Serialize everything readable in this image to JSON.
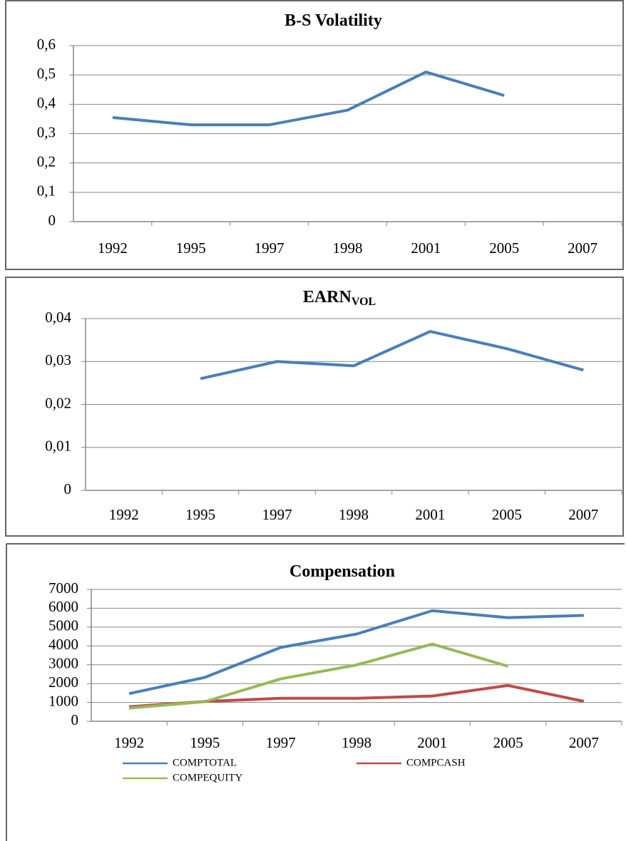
{
  "chart_data": [
    {
      "type": "line",
      "title": "B-S Volatility",
      "categories": [
        "1992",
        "1995",
        "1997",
        "1998",
        "2001",
        "2005",
        "2007"
      ],
      "values": [
        0.355,
        0.33,
        0.33,
        0.38,
        0.51,
        0.43,
        null
      ],
      "color": "#4a7ebb",
      "ylim": [
        0,
        0.6
      ],
      "yticks": [
        0,
        {
          "value": 0.1,
          "label": "0,1"
        },
        {
          "value": 0.2,
          "label": "0,2"
        },
        {
          "value": 0.3,
          "label": "0,3"
        },
        {
          "value": 0.4,
          "label": "0,4"
        },
        {
          "value": 0.5,
          "label": "0,5"
        },
        {
          "value": 0.6,
          "label": "0,6"
        }
      ],
      "grid": true
    },
    {
      "type": "line",
      "title": "EARN",
      "title_subscript": "VOL",
      "categories": [
        "1992",
        "1995",
        "1997",
        "1998",
        "2001",
        "2005",
        "2007"
      ],
      "values": [
        null,
        0.026,
        0.03,
        0.029,
        0.037,
        0.033,
        0.028
      ],
      "color": "#4a7ebb",
      "ylim": [
        0,
        0.04
      ],
      "yticks": [
        0,
        {
          "value": 0.01,
          "label": "0,01"
        },
        {
          "value": 0.02,
          "label": "0,02"
        },
        {
          "value": 0.03,
          "label": "0,03"
        },
        {
          "value": 0.04,
          "label": "0,04"
        }
      ],
      "grid": true
    },
    {
      "type": "line",
      "title": "Compensation",
      "categories": [
        "1992",
        "1995",
        "1997",
        "1998",
        "2001",
        "2005",
        "2007"
      ],
      "series": [
        {
          "name": "COMPTOTAL",
          "color": "#4a7ebb",
          "values": [
            1470,
            2330,
            3920,
            4630,
            5870,
            5500,
            5620
          ]
        },
        {
          "name": "COMPCASH",
          "color": "#be4b48",
          "values": [
            770,
            1050,
            1220,
            1220,
            1340,
            1900,
            1060
          ]
        },
        {
          "name": "COMPEQUITY",
          "color": "#98b954",
          "values": [
            700,
            1040,
            2250,
            2990,
            4100,
            2920,
            null
          ]
        }
      ],
      "ylim": [
        0,
        7000
      ],
      "yticks": [
        0,
        1000,
        2000,
        3000,
        4000,
        5000,
        6000,
        7000
      ],
      "grid": true,
      "legend": "bottom"
    }
  ]
}
